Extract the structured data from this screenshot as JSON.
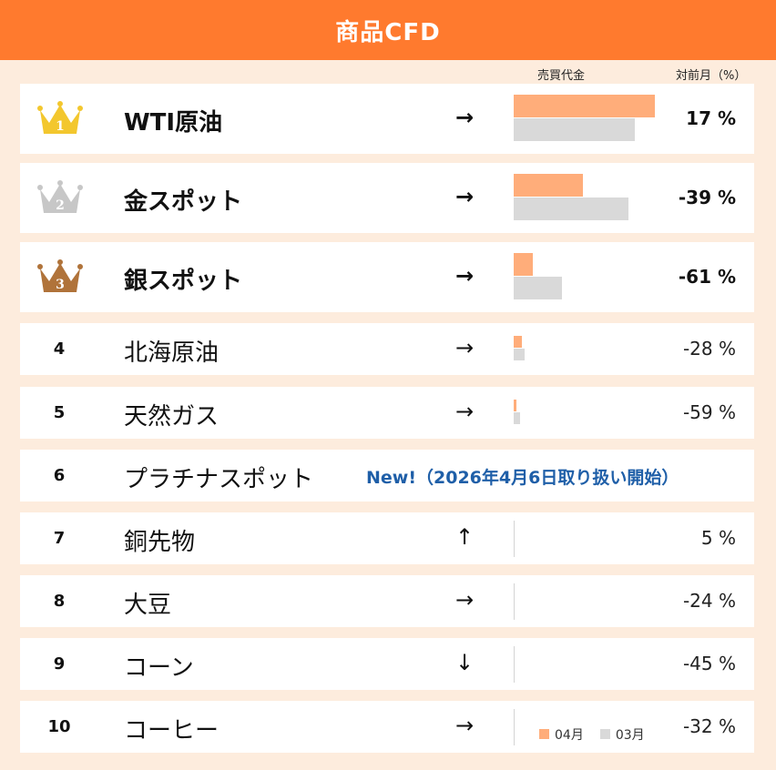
{
  "header": {
    "title": "商品CFD"
  },
  "columns": {
    "sales": "売買代金",
    "mom": "対前月（%）"
  },
  "legend": {
    "current": "04月",
    "previous": "03月"
  },
  "colors": {
    "header": "#ff7a2e",
    "current_bar": "#ffad7a",
    "previous_bar": "#d9d9d9",
    "note": "#1f5fa8",
    "gold": "#f3c72e",
    "silver": "#c7c7c7",
    "bronze": "#b0733a"
  },
  "items": [
    {
      "rank": "1",
      "name": "WTI原油",
      "arrow": "→",
      "pct": "17 %",
      "current_share": 1.0,
      "previous_share": 0.855,
      "crown": "gold"
    },
    {
      "rank": "2",
      "name": "金スポット",
      "arrow": "→",
      "pct": "-39 %",
      "current_share": 0.49,
      "previous_share": 0.81,
      "crown": "silver"
    },
    {
      "rank": "3",
      "name": "銀スポット",
      "arrow": "→",
      "pct": "-61 %",
      "current_share": 0.135,
      "previous_share": 0.345,
      "crown": "bronze"
    },
    {
      "rank": "4",
      "name": "北海原油",
      "arrow": "→",
      "pct": "-28 %",
      "current_share": 0.055,
      "previous_share": 0.075
    },
    {
      "rank": "5",
      "name": "天然ガス",
      "arrow": "→",
      "pct": "-59 %",
      "current_share": 0.02,
      "previous_share": 0.045
    },
    {
      "rank": "6",
      "name": "プラチナスポット",
      "note": "New!（2026年4月6日取り扱い開始）"
    },
    {
      "rank": "7",
      "name": "銅先物",
      "arrow": "↑",
      "pct": "5 %",
      "current_share": 0,
      "previous_share": 0
    },
    {
      "rank": "8",
      "name": "大豆",
      "arrow": "→",
      "pct": "-24 %",
      "current_share": 0,
      "previous_share": 0
    },
    {
      "rank": "9",
      "name": "コーン",
      "arrow": "↓",
      "pct": "-45 %",
      "current_share": 0,
      "previous_share": 0
    },
    {
      "rank": "10",
      "name": "コーヒー",
      "arrow": "→",
      "pct": "-32 %",
      "current_share": 0,
      "previous_share": 0
    }
  ]
}
